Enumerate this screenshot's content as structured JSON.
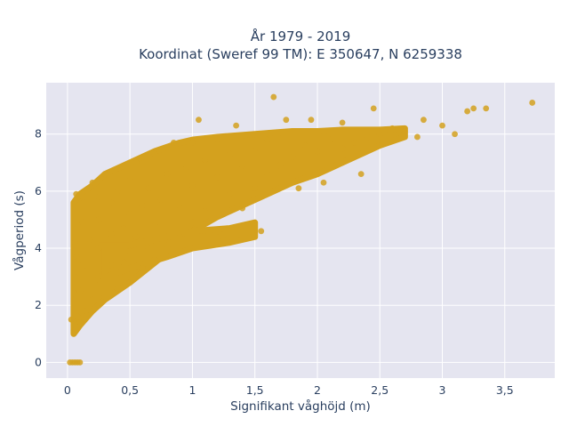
{
  "chart_data": {
    "type": "scatter",
    "title": "År 1979 - 2019",
    "subtitle": "Koordinat (Sweref 99 TM): E 350647, N 6259338",
    "xlabel": "Signifikant våghöjd (m)",
    "ylabel": "Vågperiod (s)",
    "xlim": [
      -0.17,
      3.9
    ],
    "ylim": [
      -0.55,
      9.8
    ],
    "x_ticks": [
      0,
      0.5,
      1,
      1.5,
      2,
      2.5,
      3,
      3.5
    ],
    "x_tick_labels": [
      "0",
      "0,5",
      "1",
      "1,5",
      "2",
      "2,5",
      "3",
      "3,5"
    ],
    "y_ticks": [
      0,
      2,
      4,
      6,
      8
    ],
    "y_tick_labels": [
      "0",
      "2",
      "4",
      "6",
      "8"
    ],
    "grid": true,
    "legend": "none",
    "colors": {
      "marker": "#d4a11e",
      "plot_background": "#e5e5f0",
      "grid": "#ffffff",
      "text": "#2a3f5f"
    },
    "series": [
      {
        "values": [
          [
            0.02,
            0.0
          ],
          [
            0.04,
            0.0
          ],
          [
            0.06,
            0.0
          ],
          [
            0.08,
            0.0
          ],
          [
            0.1,
            0.0
          ],
          [
            0.03,
            1.5
          ],
          [
            0.05,
            1.1
          ],
          [
            0.05,
            2.2
          ],
          [
            0.06,
            3.0
          ],
          [
            0.06,
            4.2
          ],
          [
            0.07,
            5.9
          ],
          [
            0.07,
            3.7
          ],
          [
            0.08,
            1.6
          ],
          [
            0.08,
            2.6
          ],
          [
            0.1,
            1.4
          ],
          [
            0.1,
            2.5
          ],
          [
            0.1,
            3.6
          ],
          [
            0.12,
            4.9
          ],
          [
            0.13,
            5.6
          ],
          [
            0.15,
            1.8
          ],
          [
            0.15,
            3.2
          ],
          [
            0.18,
            4.3
          ],
          [
            0.2,
            6.3
          ],
          [
            0.2,
            2.2
          ],
          [
            0.25,
            2.0
          ],
          [
            0.25,
            3.0
          ],
          [
            0.25,
            4.0
          ],
          [
            0.25,
            5.0
          ],
          [
            0.25,
            5.8
          ],
          [
            0.3,
            6.6
          ],
          [
            0.3,
            2.3
          ],
          [
            0.35,
            3.4
          ],
          [
            0.35,
            4.5
          ],
          [
            0.35,
            5.6
          ],
          [
            0.4,
            2.6
          ],
          [
            0.4,
            6.0
          ],
          [
            0.45,
            3.5
          ],
          [
            0.45,
            4.7
          ],
          [
            0.5,
            2.8
          ],
          [
            0.5,
            3.9
          ],
          [
            0.5,
            5.2
          ],
          [
            0.5,
            6.4
          ],
          [
            0.55,
            4.4
          ],
          [
            0.55,
            7.0
          ],
          [
            0.6,
            3.3
          ],
          [
            0.6,
            5.5
          ],
          [
            0.65,
            4.0
          ],
          [
            0.65,
            6.1
          ],
          [
            0.7,
            3.6
          ],
          [
            0.7,
            4.8
          ],
          [
            0.7,
            7.3
          ],
          [
            0.75,
            5.7
          ],
          [
            0.8,
            4.1
          ],
          [
            0.8,
            6.6
          ],
          [
            0.85,
            7.7
          ],
          [
            0.9,
            4.4
          ],
          [
            0.9,
            5.4
          ],
          [
            0.95,
            6.8
          ],
          [
            1.0,
            4.9
          ],
          [
            1.0,
            6.2
          ],
          [
            1.0,
            7.7
          ],
          [
            1.05,
            8.5
          ],
          [
            1.1,
            5.3
          ],
          [
            1.1,
            7.1
          ],
          [
            1.2,
            4.6
          ],
          [
            1.2,
            6.5
          ],
          [
            1.2,
            7.8
          ],
          [
            1.25,
            4.3
          ],
          [
            1.3,
            5.9
          ],
          [
            1.3,
            7.3
          ],
          [
            1.35,
            8.3
          ],
          [
            1.4,
            5.4
          ],
          [
            1.4,
            6.9
          ],
          [
            1.5,
            6.1
          ],
          [
            1.5,
            7.4
          ],
          [
            1.55,
            4.6
          ],
          [
            1.6,
            6.6
          ],
          [
            1.6,
            7.8
          ],
          [
            1.65,
            9.3
          ],
          [
            1.7,
            6.9
          ],
          [
            1.75,
            8.5
          ],
          [
            1.8,
            7.2
          ],
          [
            1.85,
            6.1
          ],
          [
            1.9,
            7.6
          ],
          [
            1.95,
            8.5
          ],
          [
            2.0,
            7.4
          ],
          [
            2.05,
            6.3
          ],
          [
            2.1,
            7.8
          ],
          [
            2.2,
            7.5
          ],
          [
            2.2,
            8.4
          ],
          [
            2.3,
            7.7
          ],
          [
            2.35,
            6.6
          ],
          [
            2.4,
            7.9
          ],
          [
            2.45,
            8.9
          ],
          [
            2.5,
            8.0
          ],
          [
            2.6,
            8.2
          ],
          [
            2.7,
            8.1
          ],
          [
            2.8,
            7.9
          ],
          [
            2.85,
            8.5
          ],
          [
            3.0,
            8.3
          ],
          [
            3.1,
            8.0
          ],
          [
            3.2,
            8.8
          ],
          [
            3.25,
            8.9
          ],
          [
            3.35,
            8.9
          ],
          [
            3.72,
            9.1
          ]
        ],
        "envelope": {
          "x": [
            0.05,
            0.1,
            0.2,
            0.3,
            0.5,
            0.7,
            0.9,
            1.0,
            1.2,
            1.5,
            1.8,
            2.0,
            2.2,
            2.5,
            2.7
          ],
          "y_low": [
            1.0,
            1.3,
            1.8,
            2.2,
            2.8,
            3.5,
            4.2,
            4.6,
            5.1,
            5.7,
            6.3,
            6.6,
            7.0,
            7.6,
            7.9
          ],
          "y_high": [
            5.6,
            5.9,
            6.2,
            6.6,
            7.0,
            7.4,
            7.7,
            7.8,
            7.9,
            8.0,
            8.1,
            8.1,
            8.15,
            8.15,
            8.2
          ]
        },
        "band": {
          "x": [
            0.25,
            0.5,
            0.8,
            1.0,
            1.3,
            1.5
          ],
          "y_low": [
            2.9,
            3.3,
            3.7,
            4.0,
            4.2,
            4.4
          ],
          "y_high": [
            4.1,
            4.1,
            4.4,
            4.6,
            4.7,
            4.9
          ]
        }
      }
    ]
  }
}
